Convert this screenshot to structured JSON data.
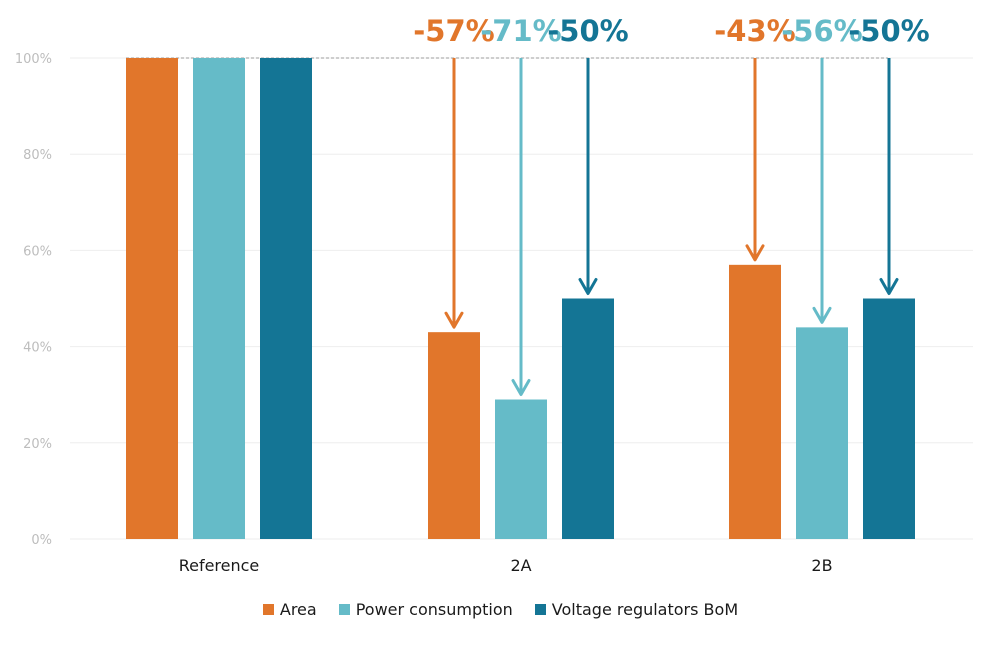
{
  "chart_data": {
    "type": "bar",
    "categories": [
      "Reference",
      "2A",
      "2B"
    ],
    "series": [
      {
        "name": "Area",
        "values": [
          100,
          43,
          57
        ],
        "color": "#e1762b"
      },
      {
        "name": "Power consumption",
        "values": [
          100,
          29,
          44
        ],
        "color": "#65bbc8"
      },
      {
        "name": "Voltage regulators BoM",
        "values": [
          100,
          50,
          50
        ],
        "color": "#147595"
      }
    ],
    "annotations": [
      {
        "category": "2A",
        "series": "Area",
        "label": "-57%"
      },
      {
        "category": "2A",
        "series": "Power consumption",
        "label": "-71%"
      },
      {
        "category": "2A",
        "series": "Voltage regulators BoM",
        "label": "-50%"
      },
      {
        "category": "2B",
        "series": "Area",
        "label": "-43%"
      },
      {
        "category": "2B",
        "series": "Power consumption",
        "label": "-56%"
      },
      {
        "category": "2B",
        "series": "Voltage regulators BoM",
        "label": "-50%"
      }
    ],
    "yticks": [
      "0%",
      "20%",
      "40%",
      "60%",
      "80%",
      "100%"
    ],
    "ylim": [
      0,
      100
    ],
    "grid": true,
    "legend_position": "bottom",
    "title": "",
    "xlabel": "",
    "ylabel": ""
  }
}
